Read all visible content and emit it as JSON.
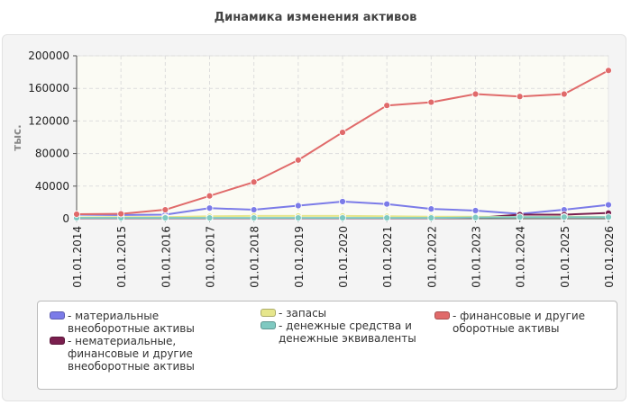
{
  "chart_data": {
    "type": "line",
    "title": "Динамика изменения активов",
    "ylabel": "тыс.",
    "xlabel": "",
    "ylim": [
      0,
      200000
    ],
    "yticks": [
      0,
      40000,
      80000,
      120000,
      160000,
      200000
    ],
    "grid": true,
    "legend_position": "bottom",
    "x": [
      "01.01.2014",
      "01.01.2015",
      "01.01.2016",
      "01.01.2017",
      "01.01.2018",
      "01.01.2019",
      "01.01.2020",
      "01.01.2021",
      "01.01.2022",
      "01.01.2023",
      "01.01.2024",
      "01.01.2025",
      "01.01.2026"
    ],
    "series": [
      {
        "name": "материальные внеоборотные активы",
        "color": "#7b7be8",
        "values": [
          5000,
          4500,
          5000,
          13000,
          11000,
          16000,
          21000,
          18000,
          12000,
          10000,
          6000,
          11000,
          17000
        ]
      },
      {
        "name": "нематериальные, финансовые и другие внеоборотные активы",
        "color": "#7a1f4e",
        "values": [
          500,
          500,
          500,
          500,
          500,
          500,
          500,
          500,
          500,
          1000,
          5000,
          5000,
          7000
        ]
      },
      {
        "name": "запасы",
        "color": "#e6e68c",
        "values": [
          1500,
          2000,
          2000,
          3000,
          3500,
          3500,
          3500,
          3000,
          2500,
          2500,
          2000,
          2500,
          2000
        ]
      },
      {
        "name": "денежные средства и денежные эквиваленты",
        "color": "#7fc9c1",
        "values": [
          1000,
          1000,
          1000,
          1000,
          1000,
          1000,
          1000,
          1000,
          1000,
          1500,
          2000,
          2000,
          2000
        ]
      },
      {
        "name": "финансовые и другие оборотные активы",
        "color": "#e06a6a",
        "values": [
          5500,
          6000,
          11000,
          28000,
          45000,
          72000,
          106000,
          139000,
          143000,
          153000,
          150000,
          153000,
          182000
        ]
      }
    ]
  }
}
